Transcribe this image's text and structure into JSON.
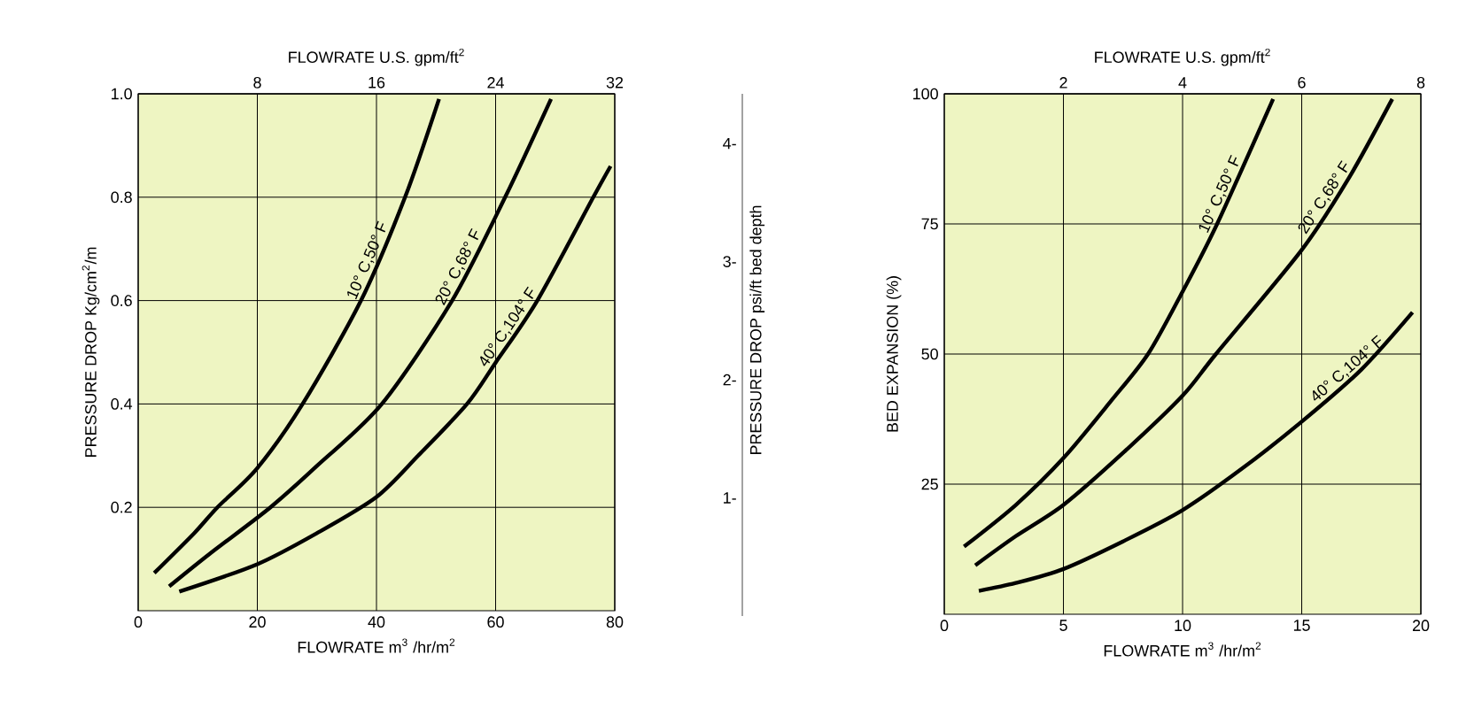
{
  "chart_data": [
    {
      "type": "line",
      "xlabel": "FLOWRATE m$^{3}$ /hr/m$^{2}$",
      "ylabel": "PRESSURE DROP Kg/cm$^{2}$/m",
      "x2label": "FLOWRATE U.S. gpm/ft$^{2}$",
      "y2label": "PRESSURE DROP psi/ft bed depth",
      "xlim": [
        0,
        80
      ],
      "ylim": [
        0,
        1
      ],
      "xticks": [
        0,
        20,
        40,
        60,
        80
      ],
      "yticks": [
        0.2,
        0.4,
        0.6,
        0.8,
        {
          "value": 1,
          "label": "1.0"
        }
      ],
      "x2lim": [
        0,
        32
      ],
      "x2ticks": [
        8,
        16,
        24,
        32
      ],
      "y2lim": [
        0,
        4.42
      ],
      "y2ticks": [
        {
          "value": 1,
          "label": "1-"
        },
        {
          "value": 2,
          "label": "2-"
        },
        {
          "value": 3,
          "label": "3-"
        },
        {
          "value": 4,
          "label": "4-"
        }
      ],
      "grid": true,
      "series": [
        {
          "name": "10° C,50° F",
          "color": "#000000",
          "x": [
            2.7,
            9.4,
            13.3,
            20,
            27.6,
            37.4,
            44.8,
            50.5
          ],
          "values": [
            0.073,
            0.15,
            0.2,
            0.276,
            0.4,
            0.6,
            0.8,
            0.99
          ]
        },
        {
          "name": "20° C,68° F",
          "color": "#000000",
          "x": [
            5.2,
            12,
            22.2,
            30,
            40.9,
            52.7,
            61.6,
            69.3
          ],
          "values": [
            0.047,
            0.11,
            0.2,
            0.28,
            0.4,
            0.6,
            0.8,
            0.99
          ]
        },
        {
          "name": "40° C,104° F",
          "color": "#000000",
          "x": [
            6.9,
            20,
            30,
            40,
            47,
            55.2,
            60,
            67,
            76.4,
            79.3
          ],
          "values": [
            0.037,
            0.09,
            0.15,
            0.22,
            0.3,
            0.4,
            0.48,
            0.6,
            0.8,
            0.86
          ]
        }
      ]
    },
    {
      "type": "line",
      "xlabel": "FLOWRATE m$^{3}$ /hr/m$^{2}$",
      "ylabel": "BED EXPANSION (%)",
      "x2label": "FLOWRATE U.S. gpm/ft$^{2}$",
      "xlim": [
        0,
        20
      ],
      "ylim": [
        0,
        100
      ],
      "xticks": [
        0,
        5,
        10,
        15,
        20
      ],
      "yticks": [
        25,
        50,
        75,
        100
      ],
      "x2lim": [
        0,
        8
      ],
      "x2ticks": [
        2,
        4,
        6,
        8
      ],
      "grid": true,
      "series": [
        {
          "name": "10° C,50° F",
          "color": "#000000",
          "x": [
            0.83,
            3,
            5,
            7,
            8.55,
            10,
            11.45,
            13.8
          ],
          "values": [
            13,
            21,
            30,
            41,
            50,
            62,
            75,
            99
          ]
        },
        {
          "name": "20° C,68° F",
          "color": "#000000",
          "x": [
            1.3,
            3,
            5,
            7.5,
            10,
            11.4,
            15,
            17,
            18.8
          ],
          "values": [
            9.4,
            15,
            21,
            31,
            42,
            50,
            70,
            84,
            99
          ]
        },
        {
          "name": "40° C,104° F",
          "color": "#000000",
          "x": [
            1.45,
            3,
            5,
            7.5,
            10,
            12.5,
            15,
            17.5,
            19.65
          ],
          "values": [
            4.5,
            6,
            8.7,
            14,
            20,
            28,
            37,
            47,
            58
          ]
        }
      ]
    }
  ]
}
